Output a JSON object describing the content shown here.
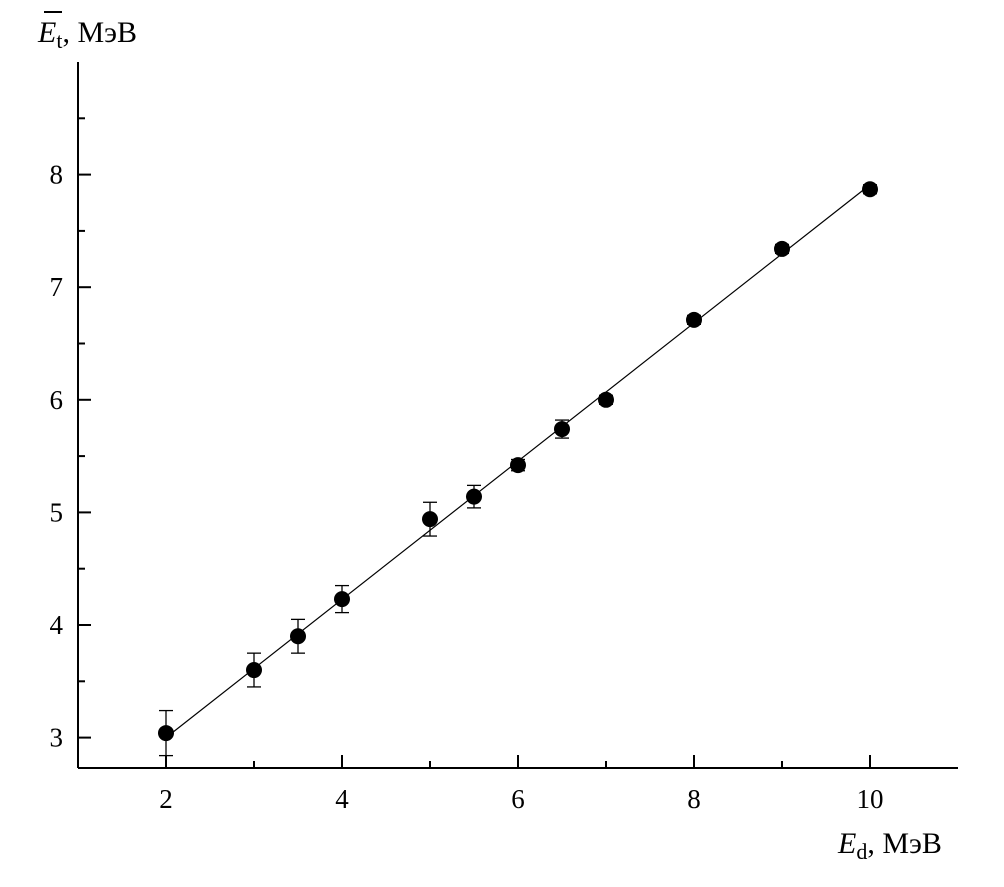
{
  "chart_data": {
    "type": "scatter",
    "title": "",
    "xlabel": {
      "symbol": "E",
      "subscript": "d",
      "unit": ", МэВ"
    },
    "ylabel": {
      "symbol": "E",
      "subscript": "t",
      "unit": ", МэВ",
      "overbar": true
    },
    "xlim": [
      1,
      11
    ],
    "ylim": [
      2.73,
      9.0
    ],
    "x_ticks_major": [
      2,
      4,
      6,
      8,
      10
    ],
    "x_ticks_minor": [
      3,
      5,
      7,
      9
    ],
    "y_ticks_major": [
      3,
      4,
      5,
      6,
      7,
      8
    ],
    "y_ticks_minor": [
      3.5,
      4.5,
      5.5,
      6.5,
      7.5,
      8.5
    ],
    "grid": false,
    "series": [
      {
        "points": [
          {
            "x": 2.0,
            "y": 3.04,
            "err": 0.2
          },
          {
            "x": 3.0,
            "y": 3.6,
            "err": 0.15
          },
          {
            "x": 3.5,
            "y": 3.9,
            "err": 0.15
          },
          {
            "x": 4.0,
            "y": 4.23,
            "err": 0.12
          },
          {
            "x": 5.0,
            "y": 4.94,
            "err": 0.15
          },
          {
            "x": 5.5,
            "y": 5.14,
            "err": 0.1
          },
          {
            "x": 6.0,
            "y": 5.42,
            "err": 0.05
          },
          {
            "x": 6.5,
            "y": 5.74,
            "err": 0.08
          },
          {
            "x": 7.0,
            "y": 6.0,
            "err": 0.04
          },
          {
            "x": 8.0,
            "y": 6.71,
            "err": 0.04
          },
          {
            "x": 9.0,
            "y": 7.34,
            "err": 0.04
          },
          {
            "x": 10.0,
            "y": 7.87,
            "err": 0.04
          }
        ]
      }
    ],
    "fit_line": {
      "x": [
        2.0,
        10.0
      ],
      "y": [
        3.0,
        7.91
      ]
    }
  }
}
